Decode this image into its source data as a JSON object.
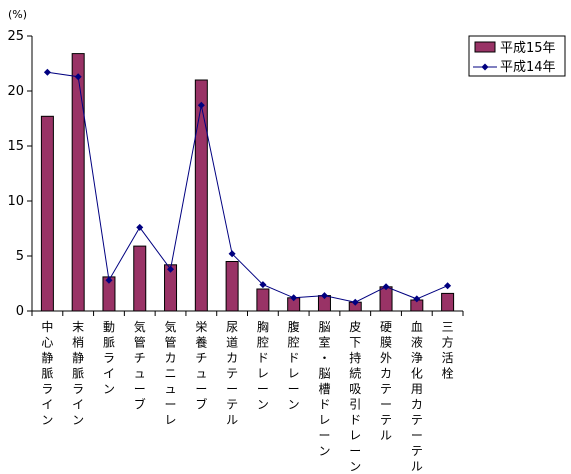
{
  "chart_data": {
    "type": "bar",
    "unit_label": "(%)",
    "ylim": [
      0,
      25
    ],
    "yticks": [
      "0",
      "5",
      "10",
      "15",
      "20",
      "25"
    ],
    "grid": false,
    "legend_position": "top-right",
    "categories": [
      "中心静脈ライン",
      "末梢静脈ライン",
      "動脈ライン",
      "気管チューブ",
      "気管カニューレ",
      "栄養チューブ",
      "尿道カテーテル",
      "胸腔ドレーン",
      "腹腔ドレーン",
      "脳室・脳槽ドレーン",
      "皮下持続吸引ドレーン",
      "硬膜外カテーテル",
      "血液浄化用カテーテル",
      "三方活栓"
    ],
    "series": [
      {
        "name": "平成15年",
        "kind": "bar",
        "color": "#993366",
        "values": [
          17.7,
          23.4,
          3.1,
          5.9,
          4.2,
          21.0,
          4.5,
          2.0,
          1.2,
          1.4,
          0.8,
          2.2,
          1.0,
          1.6
        ]
      },
      {
        "name": "平成14年",
        "kind": "line",
        "color": "#000080",
        "values": [
          21.7,
          21.3,
          2.8,
          7.6,
          3.8,
          18.7,
          5.2,
          2.4,
          1.2,
          1.4,
          0.8,
          2.2,
          1.1,
          2.3
        ]
      }
    ]
  }
}
